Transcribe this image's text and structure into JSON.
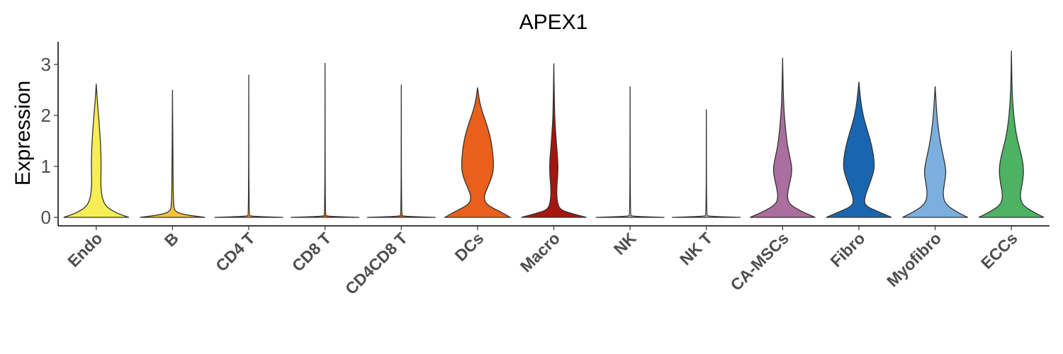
{
  "chart_data": {
    "type": "violin",
    "title": "APEX1",
    "xlabel": "",
    "ylabel": "Expression",
    "ylim": [
      -0.15,
      3.4
    ],
    "yticks": [
      0,
      1,
      2,
      3
    ],
    "grid": false,
    "legend": "none",
    "categories": [
      "Endo",
      "B",
      "CD4 T",
      "CD8 T",
      "CD4CD8 T",
      "DCs",
      "Macro",
      "NK",
      "NK T",
      "CA-MSCs",
      "Fibro",
      "Myofibro",
      "ECCs"
    ],
    "colors": [
      "#F7EE55",
      "#F6C141",
      "#F1932D",
      "#E8601C",
      "#E8601C",
      "#E8601C",
      "#A5170E",
      "#C0C0C0",
      "#C0C0C0",
      "#AA6F9E",
      "#1965B0",
      "#7BAFDE",
      "#4EB265"
    ],
    "series": [
      {
        "category": "Endo",
        "max": 2.62,
        "density": [
          [
            0,
            0.95
          ],
          [
            0.08,
            0.6
          ],
          [
            0.2,
            0.3
          ],
          [
            0.35,
            0.18
          ],
          [
            0.6,
            0.13
          ],
          [
            0.9,
            0.14
          ],
          [
            1.2,
            0.14
          ],
          [
            1.5,
            0.12
          ],
          [
            1.9,
            0.08
          ],
          [
            2.2,
            0.04
          ],
          [
            2.62,
            0.0
          ]
        ]
      },
      {
        "category": "B",
        "max": 2.5,
        "density": [
          [
            0,
            0.95
          ],
          [
            0.05,
            0.35
          ],
          [
            0.12,
            0.05
          ],
          [
            0.3,
            0.03
          ],
          [
            0.5,
            0.02
          ],
          [
            1.0,
            0.015
          ],
          [
            1.6,
            0.008
          ],
          [
            2.5,
            0.0
          ]
        ]
      },
      {
        "category": "CD4 T",
        "max": 2.8,
        "density": [
          [
            0,
            1.0
          ],
          [
            0.02,
            0.05
          ],
          [
            0.05,
            0.005
          ],
          [
            2.8,
            0.0
          ]
        ]
      },
      {
        "category": "CD8 T",
        "max": 3.03,
        "density": [
          [
            0,
            1.0
          ],
          [
            0.02,
            0.05
          ],
          [
            0.05,
            0.005
          ],
          [
            3.03,
            0.0
          ]
        ]
      },
      {
        "category": "CD4CD8 T",
        "max": 2.6,
        "density": [
          [
            0,
            1.0
          ],
          [
            0.02,
            0.05
          ],
          [
            0.05,
            0.005
          ],
          [
            2.6,
            0.0
          ]
        ]
      },
      {
        "category": "DCs",
        "max": 2.55,
        "density": [
          [
            0,
            0.95
          ],
          [
            0.1,
            0.7
          ],
          [
            0.25,
            0.25
          ],
          [
            0.4,
            0.18
          ],
          [
            0.6,
            0.3
          ],
          [
            0.85,
            0.45
          ],
          [
            1.1,
            0.47
          ],
          [
            1.5,
            0.4
          ],
          [
            1.8,
            0.28
          ],
          [
            2.1,
            0.12
          ],
          [
            2.3,
            0.05
          ],
          [
            2.55,
            0.0
          ]
        ]
      },
      {
        "category": "Macro",
        "max": 3.02,
        "density": [
          [
            0,
            0.95
          ],
          [
            0.07,
            0.55
          ],
          [
            0.15,
            0.18
          ],
          [
            0.3,
            0.1
          ],
          [
            0.55,
            0.08
          ],
          [
            0.85,
            0.12
          ],
          [
            1.1,
            0.12
          ],
          [
            1.5,
            0.07
          ],
          [
            1.8,
            0.04
          ],
          [
            2.1,
            0.02
          ],
          [
            3.02,
            0.0
          ]
        ]
      },
      {
        "category": "NK",
        "max": 2.57,
        "density": [
          [
            0,
            1.0
          ],
          [
            0.02,
            0.05
          ],
          [
            0.05,
            0.005
          ],
          [
            2.57,
            0.0
          ]
        ]
      },
      {
        "category": "NK T",
        "max": 2.12,
        "density": [
          [
            0,
            1.0
          ],
          [
            0.02,
            0.05
          ],
          [
            0.05,
            0.005
          ],
          [
            2.12,
            0.0
          ]
        ]
      },
      {
        "category": "CA-MSCs",
        "max": 3.13,
        "density": [
          [
            0,
            0.95
          ],
          [
            0.1,
            0.6
          ],
          [
            0.25,
            0.2
          ],
          [
            0.4,
            0.13
          ],
          [
            0.6,
            0.18
          ],
          [
            0.9,
            0.28
          ],
          [
            1.1,
            0.24
          ],
          [
            1.4,
            0.14
          ],
          [
            1.7,
            0.09
          ],
          [
            2.0,
            0.05
          ],
          [
            2.4,
            0.02
          ],
          [
            3.13,
            0.0
          ]
        ]
      },
      {
        "category": "Fibro",
        "max": 2.66,
        "density": [
          [
            0,
            0.95
          ],
          [
            0.1,
            0.6
          ],
          [
            0.22,
            0.2
          ],
          [
            0.35,
            0.15
          ],
          [
            0.6,
            0.28
          ],
          [
            0.9,
            0.44
          ],
          [
            1.1,
            0.45
          ],
          [
            1.4,
            0.38
          ],
          [
            1.7,
            0.25
          ],
          [
            2.0,
            0.12
          ],
          [
            2.3,
            0.05
          ],
          [
            2.66,
            0.0
          ]
        ]
      },
      {
        "category": "Myofibro",
        "max": 2.57,
        "density": [
          [
            0,
            0.95
          ],
          [
            0.1,
            0.65
          ],
          [
            0.25,
            0.3
          ],
          [
            0.45,
            0.22
          ],
          [
            0.7,
            0.28
          ],
          [
            0.9,
            0.32
          ],
          [
            1.1,
            0.27
          ],
          [
            1.4,
            0.17
          ],
          [
            1.7,
            0.1
          ],
          [
            2.0,
            0.05
          ],
          [
            2.57,
            0.0
          ]
        ]
      },
      {
        "category": "ECCs",
        "max": 3.27,
        "density": [
          [
            0,
            0.95
          ],
          [
            0.1,
            0.65
          ],
          [
            0.25,
            0.3
          ],
          [
            0.45,
            0.25
          ],
          [
            0.7,
            0.33
          ],
          [
            0.95,
            0.36
          ],
          [
            1.2,
            0.3
          ],
          [
            1.5,
            0.18
          ],
          [
            1.8,
            0.1
          ],
          [
            2.2,
            0.04
          ],
          [
            2.6,
            0.015
          ],
          [
            3.27,
            0.0
          ]
        ]
      }
    ]
  }
}
